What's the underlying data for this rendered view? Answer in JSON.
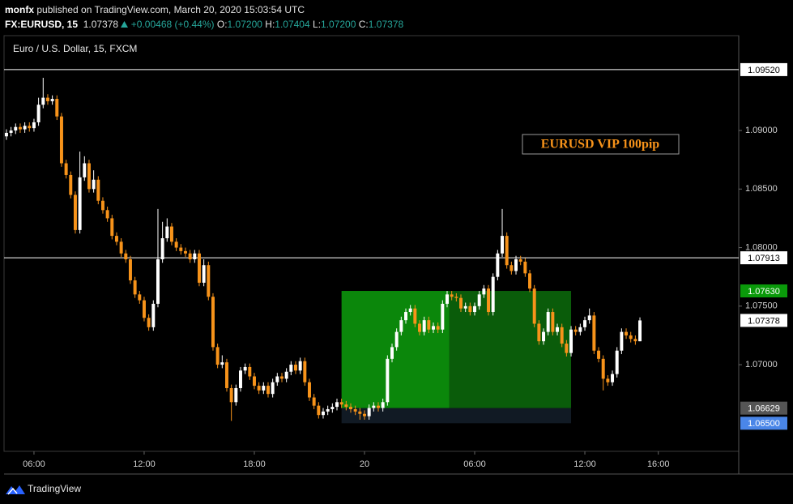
{
  "header": {
    "publisher": "monfx",
    "published": "published on TradingView.com, March 20, 2020 15:03:54 UTC",
    "symbol": "FX:EURUSD, 15",
    "price": "1.07378",
    "change": "+0.00468 (+0.44%)",
    "ohlc": [
      {
        "key": "O:",
        "value": "1.07200"
      },
      {
        "key": "H:",
        "value": "1.07404"
      },
      {
        "key": "L:",
        "value": "1.07200"
      },
      {
        "key": "C:",
        "value": "1.07378"
      }
    ]
  },
  "footer": {
    "brand": "TradingView"
  },
  "chart_data": {
    "type": "candlestick",
    "title": "Euro / U.S. Dollar, 15, FXCM",
    "annotation": "EURUSD VIP 100pip",
    "up_color": "#ffffff",
    "down_color": "#f7931a",
    "grid": false,
    "xlim": [
      4.37,
      44.38
    ],
    "ylim": [
      1.0626,
      1.0981
    ],
    "xticks": [
      {
        "value": 6,
        "label": "06:00"
      },
      {
        "value": 12,
        "label": "12:00"
      },
      {
        "value": 18,
        "label": "18:00"
      },
      {
        "value": 24,
        "label": "20"
      },
      {
        "value": 30,
        "label": "06:00"
      },
      {
        "value": 36,
        "label": "12:00"
      },
      {
        "value": 40,
        "label": "16:00"
      }
    ],
    "yticks": [
      {
        "value": 1.09,
        "label": "1.09000"
      },
      {
        "value": 1.085,
        "label": "1.08500"
      },
      {
        "value": 1.08,
        "label": "1.08000"
      },
      {
        "value": 1.075,
        "label": "1.07500"
      },
      {
        "value": 1.07,
        "label": "1.07000"
      }
    ],
    "price_labels": [
      {
        "value": 1.0952,
        "label": "1.09520",
        "color": "#ffffff",
        "line": true
      },
      {
        "value": 1.07913,
        "label": "1.07913",
        "color": "#ffffff",
        "line": true
      },
      {
        "value": 1.0763,
        "label": "1.07630",
        "color": "#0a9a0a",
        "line": false
      },
      {
        "value": 1.07378,
        "label": "1.07378",
        "color": "#ffffff",
        "line": false
      },
      {
        "value": 1.06629,
        "label": "1.06629",
        "color": "#555555",
        "line": false
      },
      {
        "value": 1.065,
        "label": "1.06500",
        "color": "#4a86e8",
        "line": false
      }
    ],
    "position": {
      "x_start": 22.75,
      "x_split": 28.625,
      "x_end": 35.25,
      "target": 1.0763,
      "entry": 1.06629,
      "stop": 1.065,
      "colors": [
        "#0b870b",
        "#0a5c0a",
        "#111a24"
      ]
    },
    "x": [
      4.5,
      4.75,
      5,
      5.25,
      5.5,
      5.75,
      6,
      6.25,
      6.5,
      6.75,
      7,
      7.25,
      7.5,
      7.75,
      8,
      8.25,
      8.5,
      8.75,
      9,
      9.25,
      9.5,
      9.75,
      10,
      10.25,
      10.5,
      10.75,
      11,
      11.25,
      11.5,
      11.75,
      12,
      12.25,
      12.5,
      12.75,
      13,
      13.25,
      13.5,
      13.75,
      14,
      14.25,
      14.5,
      14.75,
      15,
      15.25,
      15.5,
      15.75,
      16,
      16.25,
      16.5,
      16.75,
      17,
      17.25,
      17.5,
      17.75,
      18,
      18.25,
      18.5,
      18.75,
      19,
      19.25,
      19.5,
      19.75,
      20,
      20.25,
      20.5,
      20.75,
      21,
      21.25,
      21.5,
      21.75,
      22,
      22.25,
      22.5,
      22.75,
      23,
      23.25,
      23.5,
      23.75,
      24,
      24.25,
      24.5,
      24.75,
      25,
      25.25,
      25.5,
      25.75,
      26,
      26.25,
      26.5,
      26.75,
      27,
      27.25,
      27.5,
      27.75,
      28,
      28.25,
      28.5,
      28.75,
      29,
      29.25,
      29.5,
      29.75,
      30,
      30.25,
      30.5,
      30.75,
      31,
      31.25,
      31.5,
      31.75,
      32,
      32.25,
      32.5,
      32.75,
      33,
      33.25,
      33.5,
      33.75,
      34,
      34.25,
      34.5,
      34.75,
      35,
      35.25,
      35.5,
      35.75,
      36,
      36.25,
      36.5,
      36.75,
      37,
      37.25,
      37.5,
      37.75,
      38,
      38.25,
      38.5,
      38.75,
      39
    ],
    "open": [
      1.0895,
      1.0898,
      1.09,
      1.0903,
      1.0901,
      1.0904,
      1.0902,
      1.0907,
      1.0922,
      1.0928,
      1.0925,
      1.0927,
      1.0912,
      1.0872,
      1.0862,
      1.0845,
      1.0815,
      1.086,
      1.0872,
      1.085,
      1.0858,
      1.084,
      1.0832,
      1.0825,
      1.081,
      1.0805,
      1.0795,
      1.079,
      1.0772,
      1.076,
      1.0755,
      1.074,
      1.0732,
      1.0752,
      1.079,
      1.0808,
      1.0818,
      1.0805,
      1.08,
      1.0797,
      1.0795,
      1.079,
      1.0795,
      1.077,
      1.0785,
      1.0758,
      1.0715,
      1.07,
      1.0702,
      1.068,
      1.0668,
      1.068,
      1.0695,
      1.0698,
      1.069,
      1.0682,
      1.0678,
      1.0682,
      1.0675,
      1.0685,
      1.069,
      1.0688,
      1.0694,
      1.07,
      1.0695,
      1.0703,
      1.0685,
      1.0672,
      1.0665,
      1.0657,
      1.066,
      1.0662,
      1.0664,
      1.0668,
      1.0666,
      1.0664,
      1.0662,
      1.066,
      1.0658,
      1.0656,
      1.0663,
      1.0665,
      1.0663,
      1.0668,
      1.0705,
      1.0715,
      1.0728,
      1.0738,
      1.0745,
      1.0748,
      1.0735,
      1.0728,
      1.0738,
      1.073,
      1.0733,
      1.073,
      1.0752,
      1.076,
      1.0758,
      1.0757,
      1.0748,
      1.075,
      1.0745,
      1.075,
      1.076,
      1.0765,
      1.0745,
      1.0775,
      1.0795,
      1.081,
      1.0785,
      1.078,
      1.079,
      1.0788,
      1.0778,
      1.0765,
      1.0735,
      1.072,
      1.0728,
      1.0745,
      1.0728,
      1.0732,
      1.0718,
      1.071,
      1.073,
      1.0728,
      1.0732,
      1.0738,
      1.0742,
      1.0712,
      1.0705,
      1.0688,
      1.0685,
      1.0692,
      1.0712,
      1.0728,
      1.0725,
      1.0722,
      1.072
    ],
    "high": [
      1.0901,
      1.0903,
      1.0906,
      1.0906,
      1.0907,
      1.0907,
      1.091,
      1.0928,
      1.0945,
      1.0931,
      1.093,
      1.093,
      1.0915,
      1.0875,
      1.0865,
      1.0848,
      1.0882,
      1.0878,
      1.0875,
      1.0866,
      1.0861,
      1.0843,
      1.0835,
      1.0828,
      1.0813,
      1.0808,
      1.0798,
      1.0793,
      1.0775,
      1.0763,
      1.0758,
      1.0743,
      1.0755,
      1.0833,
      1.0822,
      1.0825,
      1.0821,
      1.0808,
      1.0803,
      1.08,
      1.0798,
      1.0798,
      1.0798,
      1.079,
      1.0788,
      1.0761,
      1.0718,
      1.0708,
      1.0705,
      1.0683,
      1.0683,
      1.0698,
      1.0701,
      1.0701,
      1.0693,
      1.0685,
      1.0685,
      1.0685,
      1.0688,
      1.0693,
      1.0693,
      1.0697,
      1.0703,
      1.0703,
      1.0706,
      1.0706,
      1.0688,
      1.0675,
      1.0668,
      1.0663,
      1.0665,
      1.0667,
      1.0671,
      1.0671,
      1.0669,
      1.0667,
      1.0665,
      1.0663,
      1.0661,
      1.0666,
      1.0668,
      1.0668,
      1.0671,
      1.0708,
      1.0718,
      1.0731,
      1.0741,
      1.0748,
      1.0751,
      1.0751,
      1.0738,
      1.0741,
      1.0741,
      1.0736,
      1.0736,
      1.0755,
      1.0763,
      1.0763,
      1.0761,
      1.076,
      1.0753,
      1.0753,
      1.0753,
      1.0763,
      1.0768,
      1.0768,
      1.0778,
      1.0798,
      1.0833,
      1.0813,
      1.0788,
      1.0793,
      1.0793,
      1.0791,
      1.0781,
      1.0768,
      1.0738,
      1.0731,
      1.0748,
      1.0748,
      1.0735,
      1.0735,
      1.0721,
      1.0733,
      1.0733,
      1.0735,
      1.0741,
      1.0748,
      1.0745,
      1.0715,
      1.0708,
      1.0691,
      1.0695,
      1.0715,
      1.0731,
      1.0731,
      1.0728,
      1.0725,
      1.07404
    ],
    "low": [
      1.0892,
      1.0895,
      1.0897,
      1.0898,
      1.0898,
      1.0899,
      1.0899,
      1.0904,
      1.0919,
      1.0922,
      1.0922,
      1.0909,
      1.0869,
      1.0859,
      1.0842,
      1.0812,
      1.0812,
      1.0857,
      1.0847,
      1.0847,
      1.0837,
      1.0829,
      1.0822,
      1.0807,
      1.0802,
      1.0792,
      1.0787,
      1.0769,
      1.0757,
      1.0752,
      1.0737,
      1.0729,
      1.0729,
      1.0749,
      1.0787,
      1.0805,
      1.0802,
      1.0797,
      1.0794,
      1.0792,
      1.0787,
      1.0787,
      1.0767,
      1.0767,
      1.0755,
      1.0712,
      1.0697,
      1.0697,
      1.0677,
      1.0652,
      1.0665,
      1.0677,
      1.0692,
      1.0687,
      1.0679,
      1.0675,
      1.0675,
      1.0672,
      1.0672,
      1.0682,
      1.0685,
      1.0685,
      1.0691,
      1.0692,
      1.0692,
      1.0682,
      1.0669,
      1.0662,
      1.0654,
      1.0654,
      1.0657,
      1.0659,
      1.0661,
      1.0663,
      1.0661,
      1.0659,
      1.0657,
      1.0653,
      1.0653,
      1.0653,
      1.066,
      1.066,
      1.066,
      1.0665,
      1.0702,
      1.0712,
      1.0725,
      1.0735,
      1.0742,
      1.0732,
      1.0725,
      1.0725,
      1.0727,
      1.0727,
      1.0727,
      1.0727,
      1.0749,
      1.0755,
      1.0754,
      1.0745,
      1.0745,
      1.0742,
      1.0742,
      1.0747,
      1.0757,
      1.0742,
      1.0742,
      1.0772,
      1.0792,
      1.0782,
      1.0777,
      1.0777,
      1.0785,
      1.0775,
      1.0762,
      1.0732,
      1.0717,
      1.0717,
      1.0725,
      1.0725,
      1.0725,
      1.0715,
      1.0707,
      1.0707,
      1.0725,
      1.0725,
      1.0729,
      1.0735,
      1.0709,
      1.0702,
      1.0678,
      1.0682,
      1.0682,
      1.0689,
      1.0709,
      1.0722,
      1.0719,
      1.0717,
      1.072
    ],
    "close": [
      1.0898,
      1.09,
      1.0903,
      1.0901,
      1.0904,
      1.0902,
      1.0907,
      1.0922,
      1.0928,
      1.0925,
      1.0927,
      1.0912,
      1.0872,
      1.0862,
      1.0845,
      1.0815,
      1.086,
      1.0872,
      1.085,
      1.0858,
      1.084,
      1.0832,
      1.0825,
      1.081,
      1.0805,
      1.0795,
      1.079,
      1.0772,
      1.076,
      1.0755,
      1.074,
      1.0732,
      1.0752,
      1.079,
      1.0808,
      1.0818,
      1.0805,
      1.08,
      1.0797,
      1.0795,
      1.079,
      1.0795,
      1.077,
      1.0785,
      1.0758,
      1.0715,
      1.07,
      1.0702,
      1.068,
      1.0668,
      1.068,
      1.0695,
      1.0698,
      1.069,
      1.0682,
      1.0678,
      1.0682,
      1.0675,
      1.0685,
      1.069,
      1.0688,
      1.0694,
      1.07,
      1.0695,
      1.0703,
      1.0685,
      1.0672,
      1.0665,
      1.0657,
      1.066,
      1.0662,
      1.0664,
      1.0668,
      1.0666,
      1.0664,
      1.0662,
      1.066,
      1.0658,
      1.0656,
      1.0663,
      1.0665,
      1.0663,
      1.0668,
      1.0705,
      1.0715,
      1.0728,
      1.0738,
      1.0745,
      1.0748,
      1.0735,
      1.0728,
      1.0738,
      1.073,
      1.0733,
      1.073,
      1.0752,
      1.076,
      1.0758,
      1.0757,
      1.0748,
      1.075,
      1.0745,
      1.075,
      1.076,
      1.0765,
      1.0745,
      1.0775,
      1.0795,
      1.081,
      1.0785,
      1.078,
      1.079,
      1.0788,
      1.0778,
      1.0765,
      1.0735,
      1.072,
      1.0728,
      1.0745,
      1.0728,
      1.0732,
      1.0718,
      1.071,
      1.073,
      1.0728,
      1.0732,
      1.0738,
      1.0742,
      1.0712,
      1.0705,
      1.0688,
      1.0685,
      1.0692,
      1.0712,
      1.0728,
      1.0725,
      1.0722,
      1.072,
      1.07378
    ]
  }
}
